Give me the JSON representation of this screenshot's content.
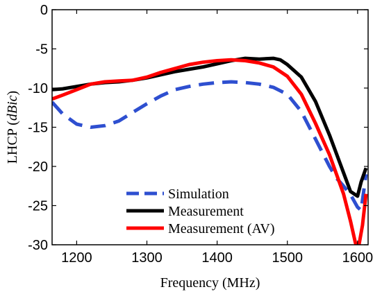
{
  "chart_data": {
    "type": "line",
    "title": "",
    "xlabel": "Frequency (MHz)",
    "ylabel_main": "LHCP (",
    "ylabel_unit": "dBic",
    "ylabel_close": ")",
    "xlim": [
      1165,
      1615
    ],
    "ylim": [
      -30,
      0
    ],
    "xticks": [
      1200,
      1300,
      1400,
      1500,
      1600
    ],
    "yticks": [
      0,
      -5,
      -10,
      -15,
      -20,
      -25,
      -30
    ],
    "grid": false,
    "legend_position": "bottom-center",
    "series": [
      {
        "name": "Simulation",
        "color": "#2e4fd0",
        "dash": "dashed",
        "x": [
          1165,
          1180,
          1200,
          1220,
          1240,
          1260,
          1280,
          1300,
          1320,
          1340,
          1360,
          1380,
          1400,
          1420,
          1440,
          1460,
          1480,
          1500,
          1520,
          1540,
          1560,
          1570,
          1580,
          1590,
          1600,
          1605,
          1612
        ],
        "y": [
          -11.8,
          -13.3,
          -14.6,
          -15.0,
          -14.8,
          -14.2,
          -13.1,
          -12.0,
          -11.0,
          -10.2,
          -9.8,
          -9.5,
          -9.3,
          -9.2,
          -9.3,
          -9.5,
          -9.9,
          -10.8,
          -13.0,
          -16.5,
          -20.0,
          -21.5,
          -22.5,
          -23.6,
          -25.2,
          -25.6,
          -21.0
        ]
      },
      {
        "name": "Measurement",
        "color": "#000000",
        "dash": "solid",
        "x": [
          1165,
          1180,
          1200,
          1220,
          1240,
          1260,
          1280,
          1300,
          1320,
          1340,
          1360,
          1380,
          1400,
          1420,
          1440,
          1460,
          1480,
          1490,
          1500,
          1520,
          1540,
          1560,
          1580,
          1590,
          1600,
          1605,
          1612
        ],
        "y": [
          -10.2,
          -10.1,
          -9.8,
          -9.5,
          -9.3,
          -9.2,
          -9.0,
          -8.7,
          -8.3,
          -7.9,
          -7.6,
          -7.3,
          -6.9,
          -6.5,
          -6.2,
          -6.3,
          -6.2,
          -6.4,
          -7.0,
          -8.6,
          -11.7,
          -16.0,
          -20.8,
          -23.2,
          -23.8,
          -22.0,
          -20.2
        ]
      },
      {
        "name": "Measurement (AV)",
        "color": "#ff0000",
        "dash": "solid",
        "x": [
          1165,
          1180,
          1200,
          1220,
          1240,
          1260,
          1280,
          1300,
          1320,
          1340,
          1360,
          1380,
          1400,
          1420,
          1440,
          1460,
          1480,
          1500,
          1520,
          1540,
          1560,
          1580,
          1590,
          1597,
          1602,
          1607,
          1612
        ],
        "y": [
          -11.4,
          -10.9,
          -10.2,
          -9.5,
          -9.2,
          -9.1,
          -9.0,
          -8.6,
          -8.0,
          -7.5,
          -7.0,
          -6.7,
          -6.5,
          -6.4,
          -6.5,
          -6.8,
          -7.3,
          -8.5,
          -10.8,
          -14.5,
          -18.5,
          -23.5,
          -27.0,
          -29.8,
          -30.0,
          -27.5,
          -23.5
        ]
      }
    ]
  }
}
